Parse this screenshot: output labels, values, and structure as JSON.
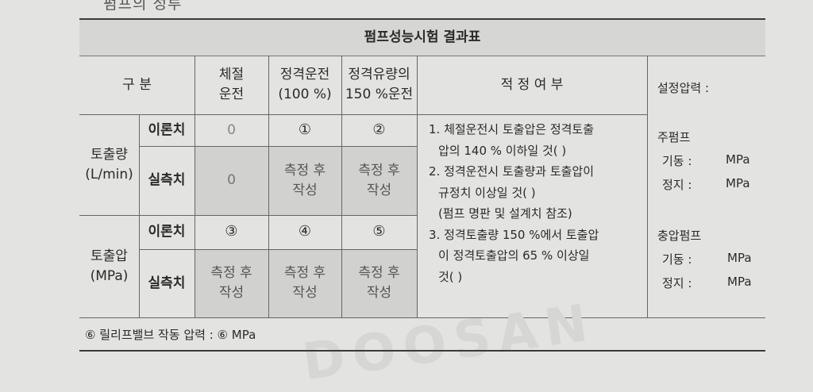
{
  "page_heading_cut": "펌프의 성루",
  "table": {
    "title": "펌프성능시험 결과표",
    "header": {
      "category": "구 분",
      "col_shutoff": [
        "체절",
        "운전"
      ],
      "col_rated": [
        "정격운전",
        "(100 %)"
      ],
      "col_150": [
        "정격유량의",
        "150 %운전"
      ],
      "col_judgement": "적 정 여 부"
    },
    "discharge_flow": {
      "label": [
        "토출량",
        "(L/min)"
      ],
      "theory_label": "이론치",
      "measured_label": "실측치",
      "theory": [
        "0",
        "①",
        "②"
      ],
      "measured": [
        "0",
        [
          "측정 후",
          "작성"
        ],
        [
          "측정 후",
          "작성"
        ]
      ]
    },
    "discharge_pressure": {
      "label": [
        "토출압",
        "(MPa)"
      ],
      "theory_label": "이론치",
      "measured_label": "실측치",
      "theory": [
        "③",
        "④",
        "⑤"
      ],
      "measured": [
        [
          "측정 후",
          "작성"
        ],
        [
          "측정 후",
          "작성"
        ],
        [
          "측정 후",
          "작성"
        ]
      ]
    },
    "requirements": [
      "1. 체절운전시 토출압은 정격토출",
      "압의 140 % 이하일 것(    )",
      "2. 정격운전시 토출량과 토출압이",
      "규정치 이상일 것(    )",
      "(펌프 명판 및 설계치 참조)",
      "3. 정격토출량 150 %에서 토출압",
      "이 정격토출압의 65 % 이상일",
      "것(    )"
    ],
    "set_pressure": {
      "title": "설정압력 :",
      "main_pump": "주펌프",
      "jockey_pump": "충압펌프",
      "start_label": "기동 :",
      "stop_label": "정지 :",
      "unit": "MPa"
    }
  },
  "footnote": "⑥ 릴리프밸브 작동 압력 : ⑥ MPa",
  "watermark": "DOOSAN"
}
